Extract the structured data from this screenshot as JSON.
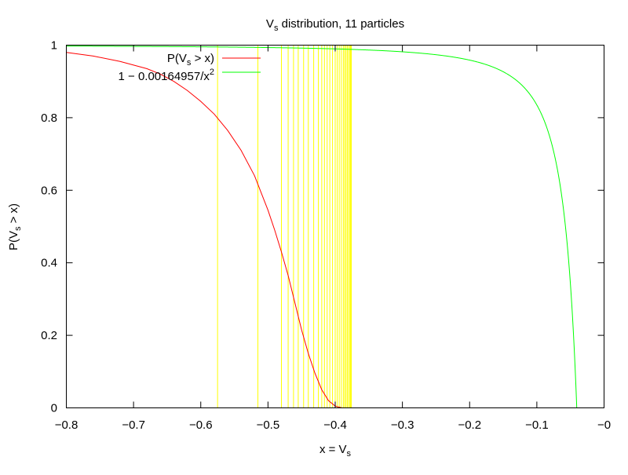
{
  "chart_data": {
    "type": "line",
    "title": "Vs distribution, 11 particles",
    "title_parts": {
      "pre": "V",
      "sub": "s",
      "post": " distribution, 11 particles"
    },
    "xlabel": "x = Vs",
    "xlabel_parts": {
      "pre": "x = V",
      "sub": "s",
      "post": ""
    },
    "ylabel": "P(Vs > x)",
    "ylabel_parts": {
      "pre": "P(V",
      "sub": "s",
      "post": " > x)"
    },
    "xlim": [
      -0.8,
      0
    ],
    "ylim": [
      0,
      1
    ],
    "grid": false,
    "legend_position": "top-left",
    "x_ticks": [
      {
        "value": -0.8,
        "label": "−0.8"
      },
      {
        "value": -0.7,
        "label": "−0.7"
      },
      {
        "value": -0.6,
        "label": "−0.6"
      },
      {
        "value": -0.5,
        "label": "−0.5"
      },
      {
        "value": -0.4,
        "label": "−0.4"
      },
      {
        "value": -0.3,
        "label": "−0.3"
      },
      {
        "value": -0.2,
        "label": "−0.2"
      },
      {
        "value": -0.1,
        "label": "−0.1"
      },
      {
        "value": 0,
        "label": "−0"
      }
    ],
    "y_ticks": [
      {
        "value": 0,
        "label": "0"
      },
      {
        "value": 0.2,
        "label": "0.2"
      },
      {
        "value": 0.4,
        "label": "0.4"
      },
      {
        "value": 0.6,
        "label": "0.6"
      },
      {
        "value": 0.8,
        "label": "0.8"
      },
      {
        "value": 1,
        "label": "1"
      }
    ],
    "series": [
      {
        "name": "P(Vs > x)",
        "name_parts": {
          "pre": "P(V",
          "sub": "s",
          "post": " > x)"
        },
        "color": "#ff0000",
        "points": [
          [
            -0.8,
            0.98
          ],
          [
            -0.76,
            0.97
          ],
          [
            -0.72,
            0.955
          ],
          [
            -0.68,
            0.935
          ],
          [
            -0.66,
            0.92
          ],
          [
            -0.64,
            0.9
          ],
          [
            -0.62,
            0.875
          ],
          [
            -0.6,
            0.845
          ],
          [
            -0.58,
            0.81
          ],
          [
            -0.56,
            0.765
          ],
          [
            -0.54,
            0.71
          ],
          [
            -0.52,
            0.64
          ],
          [
            -0.5,
            0.545
          ],
          [
            -0.49,
            0.49
          ],
          [
            -0.48,
            0.43
          ],
          [
            -0.47,
            0.365
          ],
          [
            -0.46,
            0.29
          ],
          [
            -0.45,
            0.215
          ],
          [
            -0.44,
            0.15
          ],
          [
            -0.43,
            0.095
          ],
          [
            -0.42,
            0.05
          ],
          [
            -0.41,
            0.02
          ],
          [
            -0.4,
            0.005
          ],
          [
            -0.39,
            0.0
          ],
          [
            -0.3,
            0.0
          ],
          [
            -0.2,
            0.0
          ],
          [
            -0.17,
            0.0
          ]
        ]
      },
      {
        "name": "1 - 0.00164957/x^2",
        "name_parts": {
          "pre": "1 − 0.00164957/x",
          "sup": "2"
        },
        "color": "#00ff00",
        "function": {
          "kind": "one_minus_c_over_x_squared",
          "c": 0.00164957
        }
      }
    ],
    "vertical_lines": {
      "color": "#ffff00",
      "x": [
        -0.575,
        -0.515,
        -0.48,
        -0.47,
        -0.462,
        -0.455,
        -0.447,
        -0.44,
        -0.432,
        -0.425,
        -0.42,
        -0.416,
        -0.412,
        -0.408,
        -0.404,
        -0.4,
        -0.397,
        -0.394,
        -0.391,
        -0.388,
        -0.386,
        -0.384,
        -0.382,
        -0.38,
        -0.378,
        -0.377,
        -0.376
      ]
    }
  }
}
